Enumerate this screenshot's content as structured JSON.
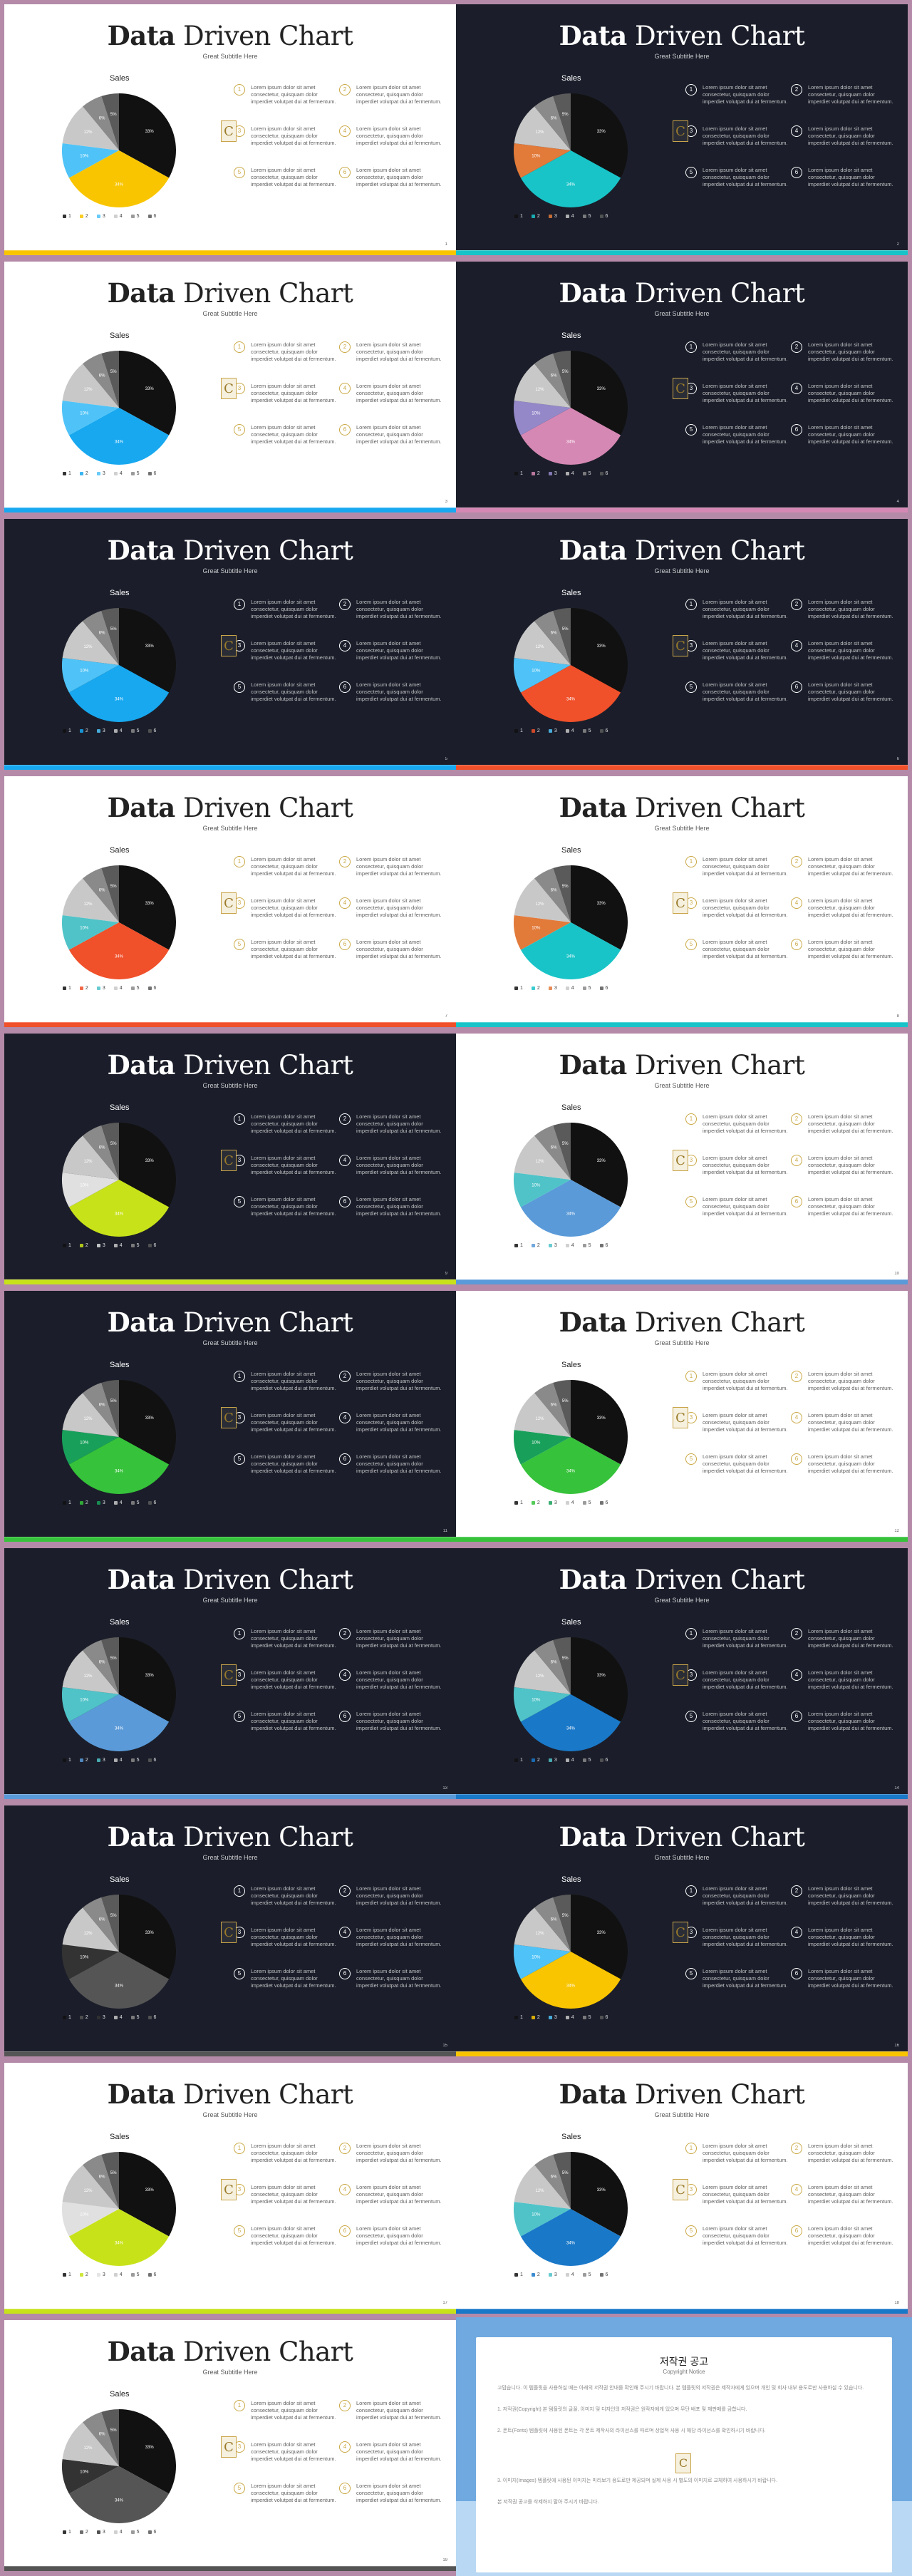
{
  "slide_common": {
    "title_bold": "Data",
    "title_rest": " Driven Chart",
    "subtitle": "Great Subtitle Here",
    "chart_title": "Sales",
    "lorem": "Lorem ipsum dolor sit amet consectetur, quisquam dolor imperdiet volutpat dui at fermentum.",
    "legend_labels": [
      "1",
      "2",
      "3",
      "4",
      "5",
      "6"
    ],
    "item_numbers": [
      "1",
      "2",
      "3",
      "4",
      "5",
      "6"
    ],
    "pie_labels": [
      "33%",
      "34%",
      "10%",
      "12%",
      "6%",
      "5%"
    ]
  },
  "slides": [
    {
      "theme": "light",
      "accent": "#f9c500",
      "pie": [
        "#111111",
        "#f9c500",
        "#4fc3f7",
        "#c8c8c8",
        "#8a8a8a",
        "#5a5a5a"
      ],
      "page": "1"
    },
    {
      "theme": "dark",
      "accent": "#18c4c8",
      "pie": [
        "#111111",
        "#18c4c8",
        "#e27a3a",
        "#c8c8c8",
        "#8a8a8a",
        "#5a5a5a"
      ],
      "page": "2"
    },
    {
      "theme": "light",
      "accent": "#18a8f0",
      "pie": [
        "#111111",
        "#18a8f0",
        "#4fc3f7",
        "#c8c8c8",
        "#8a8a8a",
        "#5a5a5a"
      ],
      "page": "3"
    },
    {
      "theme": "dark",
      "accent": "#d688b4",
      "pie": [
        "#111111",
        "#d688b4",
        "#9488c9",
        "#c8c8c8",
        "#8a8a8a",
        "#5a5a5a"
      ],
      "page": "4"
    },
    {
      "theme": "dark",
      "accent": "#18a8f0",
      "pie": [
        "#111111",
        "#18a8f0",
        "#4fc3f7",
        "#c8c8c8",
        "#8a8a8a",
        "#5a5a5a"
      ],
      "page": "5"
    },
    {
      "theme": "dark",
      "accent": "#f0502a",
      "pie": [
        "#111111",
        "#f0502a",
        "#4fc3f7",
        "#c8c8c8",
        "#8a8a8a",
        "#5a5a5a"
      ],
      "page": "6"
    },
    {
      "theme": "light",
      "accent": "#f0502a",
      "pie": [
        "#111111",
        "#f0502a",
        "#4fc3c8",
        "#c8c8c8",
        "#8a8a8a",
        "#5a5a5a"
      ],
      "page": "7"
    },
    {
      "theme": "light",
      "accent": "#18c4c8",
      "pie": [
        "#111111",
        "#18c4c8",
        "#e27a3a",
        "#c8c8c8",
        "#8a8a8a",
        "#5a5a5a"
      ],
      "page": "8"
    },
    {
      "theme": "dark",
      "accent": "#c8e21a",
      "pie": [
        "#111111",
        "#c8e21a",
        "#e0e0e0",
        "#c8c8c8",
        "#8a8a8a",
        "#5a5a5a"
      ],
      "page": "9"
    },
    {
      "theme": "light",
      "accent": "#5a9ad8",
      "pie": [
        "#111111",
        "#5a9ad8",
        "#4fc3c8",
        "#c8c8c8",
        "#8a8a8a",
        "#5a5a5a"
      ],
      "page": "10"
    },
    {
      "theme": "dark",
      "accent": "#36c23a",
      "pie": [
        "#111111",
        "#36c23a",
        "#18a05a",
        "#c8c8c8",
        "#8a8a8a",
        "#5a5a5a"
      ],
      "page": "11"
    },
    {
      "theme": "light",
      "accent": "#36c23a",
      "pie": [
        "#111111",
        "#36c23a",
        "#18a05a",
        "#c8c8c8",
        "#8a8a8a",
        "#5a5a5a"
      ],
      "page": "12"
    },
    {
      "theme": "dark",
      "accent": "#5a9ad8",
      "pie": [
        "#111111",
        "#5a9ad8",
        "#4fc3c8",
        "#c8c8c8",
        "#8a8a8a",
        "#5a5a5a"
      ],
      "page": "13"
    },
    {
      "theme": "dark",
      "accent": "#1a78c8",
      "pie": [
        "#111111",
        "#1a78c8",
        "#4fc3c8",
        "#c8c8c8",
        "#8a8a8a",
        "#5a5a5a"
      ],
      "page": "14"
    },
    {
      "theme": "dark",
      "accent": "#555555",
      "pie": [
        "#111111",
        "#555555",
        "#333333",
        "#c8c8c8",
        "#8a8a8a",
        "#5a5a5a"
      ],
      "page": "15"
    },
    {
      "theme": "dark",
      "accent": "#f9c500",
      "pie": [
        "#111111",
        "#f9c500",
        "#4fc3f7",
        "#c8c8c8",
        "#8a8a8a",
        "#5a5a5a"
      ],
      "page": "16"
    },
    {
      "theme": "light",
      "accent": "#c8e21a",
      "pie": [
        "#111111",
        "#c8e21a",
        "#e0e0e0",
        "#c8c8c8",
        "#8a8a8a",
        "#5a5a5a"
      ],
      "page": "17"
    },
    {
      "theme": "light",
      "accent": "#1a78c8",
      "pie": [
        "#111111",
        "#1a78c8",
        "#4fc3c8",
        "#c8c8c8",
        "#8a8a8a",
        "#5a5a5a"
      ],
      "page": "18"
    },
    {
      "theme": "light",
      "accent": "#555555",
      "pie": [
        "#111111",
        "#555555",
        "#333333",
        "#c8c8c8",
        "#8a8a8a",
        "#5a5a5a"
      ],
      "page": "19"
    }
  ],
  "chart_data": {
    "type": "pie",
    "title": "Sales",
    "categories": [
      "1",
      "2",
      "3",
      "4",
      "5",
      "6"
    ],
    "values": [
      33,
      34,
      10,
      12,
      6,
      5
    ]
  },
  "notice": {
    "title": "저작권 공고",
    "subtitle": "Copyright Notice",
    "p1": "고맙습니다. 이 템플릿을 사용하실 때는 아래의 저작권 안내를 확인해 주시기 바랍니다. 본 템플릿의 저작권은 제작자에게 있으며 개인 및 회사 내부 용도로만 사용하실 수 있습니다.",
    "p2": "1. 저작권(Copyright) 본 템플릿의 글꼴, 이미지 및 디자인의 저작권은 원작자에게 있으며 무단 배포 및 재판매를 금합니다.",
    "p3": "2. 폰트(Fonts) 템플릿에 사용된 폰트는 각 폰트 제작사의 라이선스를 따르며 상업적 사용 시 해당 라이선스를 확인하시기 바랍니다.",
    "p4": "3. 이미지(Images) 템플릿에 사용된 이미지는 미리보기 용도로만 제공되며 실제 사용 시 별도의 이미지로 교체하여 사용하시기 바랍니다.",
    "p5": "본 저작권 공고를 삭제하지 말아 주시기 바랍니다."
  }
}
